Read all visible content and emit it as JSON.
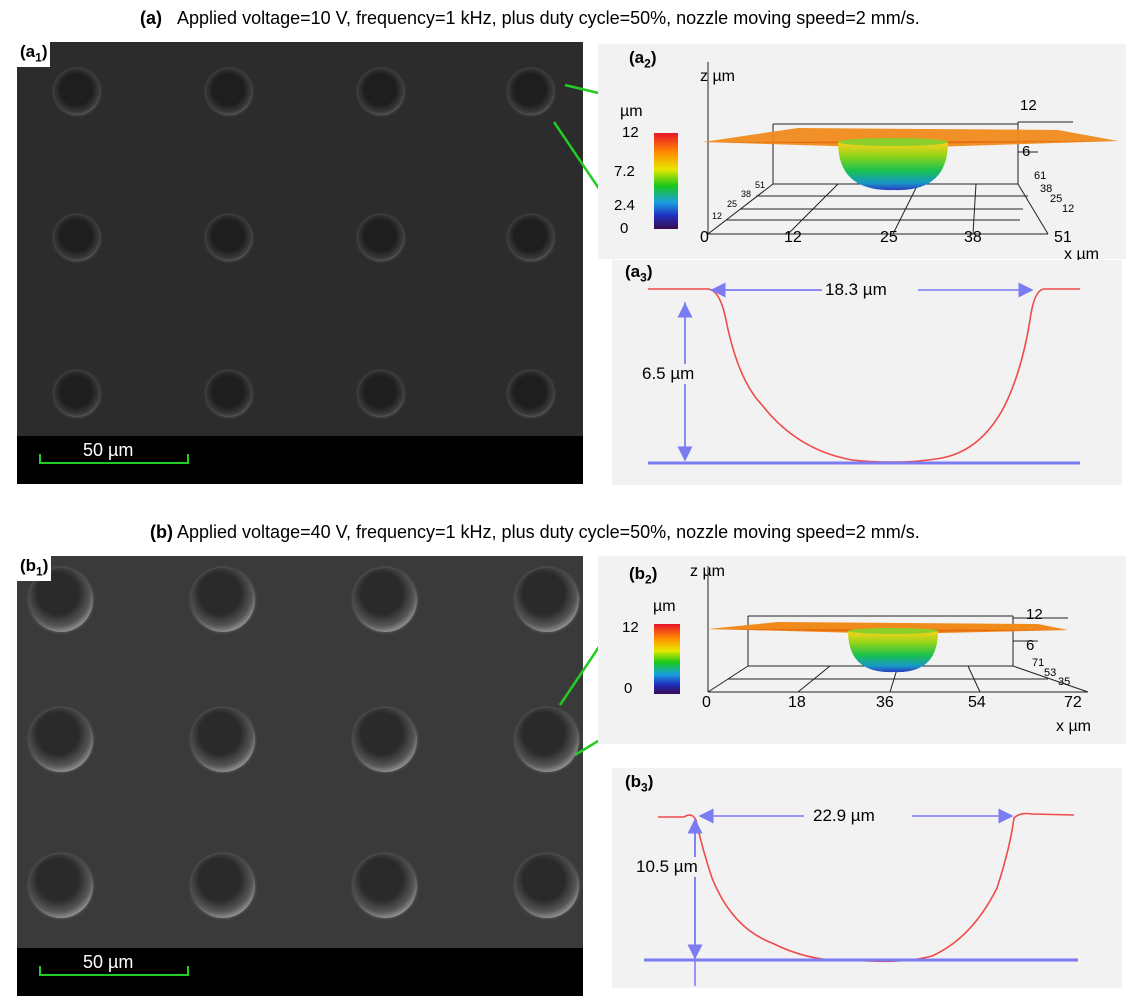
{
  "caption_a": {
    "tag": "(a)",
    "text": "Applied voltage=10 V, frequency=1 kHz, plus duty cycle=50%, nozzle moving speed=2 mm/s."
  },
  "caption_b": {
    "tag": "(b)",
    "text": "Applied voltage=40 V, frequency=1 kHz, plus duty cycle=50%, nozzle moving speed=2 mm/s."
  },
  "panel_a1": {
    "tag": "(a",
    "sub": "1",
    "tag_end": ")",
    "scale_label": "50 µm"
  },
  "panel_b1": {
    "tag": "(b",
    "sub": "1",
    "tag_end": ")",
    "scale_label": "50 µm"
  },
  "panel_a2": {
    "tag": "(a",
    "sub": "2",
    "tag_end": ")",
    "z_axis_label": "z µm",
    "x_axis_label": "x µm",
    "colorbar_unit": "µm",
    "colorbar_ticks": [
      "12",
      "7.2",
      "2.4",
      "0"
    ],
    "z_ticks": [
      "12",
      "6"
    ],
    "x_ticks": [
      "0",
      "12",
      "25",
      "38",
      "51"
    ],
    "y_ticks_right": [
      "61",
      "38",
      "25",
      "12"
    ],
    "y_ticks_left": [
      "12",
      "25",
      "38",
      "51"
    ]
  },
  "panel_b2": {
    "tag": "(b",
    "sub": "2",
    "tag_end": ")",
    "z_axis_label": "z µm",
    "x_axis_label": "x µm",
    "colorbar_unit": "µm",
    "colorbar_ticks": [
      "12",
      "0"
    ],
    "z_ticks": [
      "12",
      "6"
    ],
    "x_ticks": [
      "0",
      "18",
      "36",
      "54",
      "72"
    ],
    "y_ticks_right": [
      "71",
      "53",
      "35"
    ]
  },
  "panel_a3": {
    "tag": "(a",
    "sub": "3",
    "tag_end": ")",
    "width_label": "18.3 µm",
    "depth_label": "6.5 µm"
  },
  "panel_b3": {
    "tag": "(b",
    "sub": "3",
    "tag_end": ")",
    "width_label": "22.9 µm",
    "depth_label": "10.5 µm"
  },
  "colors": {
    "profile": "#f04a4a",
    "dimension": "#7b7bf2",
    "callout": "#22cc22",
    "scalebar": "#22cc22"
  }
}
